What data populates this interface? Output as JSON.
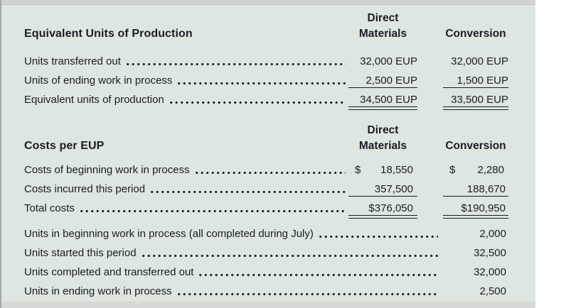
{
  "colors": {
    "panel_bg": "#dde6e0",
    "top_strip": "#d0d3d0",
    "bottom_strip": "#d6d9d6",
    "text": "#1c1c26",
    "left_edge": "#a3a9a4"
  },
  "sections": [
    {
      "title": "Equivalent Units of Production",
      "columns": [
        {
          "line1": "Direct",
          "line2": "Materials"
        },
        {
          "line1": "",
          "line2": "Conversion"
        }
      ],
      "rows": [
        {
          "label": "Units transferred out",
          "values": [
            "32,000 EUP",
            "32,000 EUP"
          ],
          "rule": "none"
        },
        {
          "label": "Units of ending work in process",
          "values": [
            "2,500 EUP",
            "1,500 EUP"
          ],
          "rule": "single"
        },
        {
          "label": "Equivalent units of production",
          "values": [
            "34,500 EUP",
            "33,500 EUP"
          ],
          "rule": "double"
        }
      ]
    },
    {
      "title": "Costs per EUP",
      "columns": [
        {
          "line1": "Direct",
          "line2": "Materials"
        },
        {
          "line1": "",
          "line2": "Conversion"
        }
      ],
      "rows": [
        {
          "label": "Costs of beginning work in process",
          "prefixes": [
            "$",
            "$"
          ],
          "values": [
            "18,550",
            "2,280"
          ],
          "rule": "none"
        },
        {
          "label": "Costs incurred this period",
          "values": [
            "357,500",
            "188,670"
          ],
          "rule": "single"
        },
        {
          "label": "Total costs",
          "values": [
            "$376,050",
            "$190,950"
          ],
          "rule": "double"
        }
      ]
    }
  ],
  "summary": {
    "rows": [
      {
        "label": "Units in beginning work in process (all completed during July)",
        "value": "2,000"
      },
      {
        "label": "Units started this period",
        "value": "32,500"
      },
      {
        "label": "Units completed and transferred out",
        "value": "32,000"
      },
      {
        "label": "Units in ending work in process",
        "value": "2,500"
      }
    ]
  }
}
